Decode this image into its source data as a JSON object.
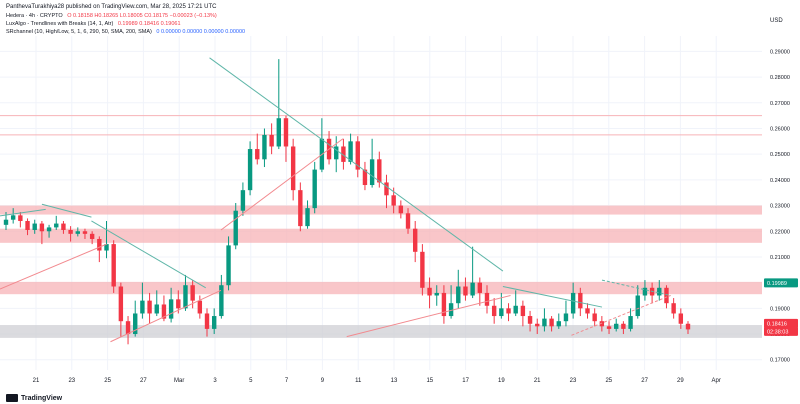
{
  "header": {
    "published": "PanthevaTurakhiya28 published on TradingView.com, Mar 28, 2025 17:21 UTC"
  },
  "legend": [
    {
      "name": "Hedera · 4h · CRYPTO",
      "values": "O 0.18158  H0.18265  L0.18005  C0.18175  −0.00023 (−0.13%)",
      "color": "red"
    },
    {
      "name": "LuxAlgo - Trendlines with Breaks (14, 1, Atr)",
      "values": "0.19989  0.18416  0.19061",
      "color": "red"
    },
    {
      "name": "SRchannel (10, High/Low, 5, 1, 6, 290, 50, SMA, 200, SMA)",
      "values": "0  0.00000  0.00000  0.00000  0.00000",
      "color": "blue"
    }
  ],
  "footer": {
    "brand": "TradingView"
  },
  "chart_data": {
    "type": "candlestick",
    "y_axis_unit": "USD",
    "ylim": [
      0.166,
      0.296
    ],
    "y_ticks": [
      0.17,
      0.18,
      0.19,
      0.2,
      0.21,
      0.22,
      0.23,
      0.24,
      0.25,
      0.26,
      0.27,
      0.28,
      0.29
    ],
    "y_tick_labels": [
      "0.17000",
      "0.18000",
      "0.19000",
      "0.20000",
      "0.21000",
      "0.22000",
      "0.23000",
      "0.24000",
      "0.25000",
      "0.26000",
      "0.27000",
      "0.28000",
      "0.29000"
    ],
    "x_tick_labels": [
      "21",
      "23",
      "25",
      "27",
      "Mar",
      "3",
      "5",
      "7",
      "9",
      "11",
      "13",
      "15",
      "17",
      "19",
      "21",
      "23",
      "25",
      "27",
      "29",
      "Apr"
    ],
    "price_badges": [
      {
        "label": "0.19989",
        "value": 0.19989,
        "color": "#089981"
      },
      {
        "label": "0.18416",
        "value": 0.18416,
        "color": "#f23645"
      },
      {
        "label": "02:38:03",
        "value": 0.1815,
        "color": "#f23645"
      }
    ],
    "sr_zones": [
      {
        "low": 0.1955,
        "high": 0.2003,
        "color": "#f7b3b7"
      },
      {
        "low": 0.2155,
        "high": 0.221,
        "color": "#f7b3b7"
      },
      {
        "low": 0.2265,
        "high": 0.23,
        "color": "#f7b3b7"
      },
      {
        "low": 0.1785,
        "high": 0.1835,
        "color": "#cfcfd4"
      }
    ],
    "sr_lines": [
      0.2575,
      0.265
    ],
    "trendlines": [
      {
        "from": [
          0.0,
          0.226
        ],
        "to": [
          0.06,
          0.2285
        ],
        "color": "#5fb6a8"
      },
      {
        "from": [
          0.055,
          0.2305
        ],
        "to": [
          0.12,
          0.2255
        ],
        "color": "#5fb6a8"
      },
      {
        "from": [
          0.12,
          0.224
        ],
        "to": [
          0.27,
          0.198
        ],
        "color": "#5fb6a8"
      },
      {
        "from": [
          0.275,
          0.2875
        ],
        "to": [
          0.66,
          0.2045
        ],
        "color": "#5fb6a8"
      },
      {
        "from": [
          0.66,
          0.1985
        ],
        "to": [
          0.79,
          0.1905
        ],
        "color": "#5fb6a8"
      },
      {
        "from": [
          0.79,
          0.201
        ],
        "to": [
          0.88,
          0.195
        ],
        "color": "#5fb6a8",
        "dashed": true
      },
      {
        "from": [
          0.0,
          0.1975
        ],
        "to": [
          0.14,
          0.215
        ],
        "color": "#f28a8f"
      },
      {
        "from": [
          0.145,
          0.177
        ],
        "to": [
          0.29,
          0.197
        ],
        "color": "#f28a8f"
      },
      {
        "from": [
          0.29,
          0.2205
        ],
        "to": [
          0.45,
          0.256
        ],
        "color": "#f28a8f"
      },
      {
        "from": [
          0.455,
          0.179
        ],
        "to": [
          0.67,
          0.195
        ],
        "color": "#f28a8f"
      },
      {
        "from": [
          0.75,
          0.1795
        ],
        "to": [
          0.88,
          0.195
        ],
        "color": "#f28a8f",
        "dashed": true
      }
    ],
    "candles": [
      [
        0.2225,
        0.2245,
        0.2275,
        0.2205
      ],
      [
        0.2245,
        0.2262,
        0.229,
        0.223
      ],
      [
        0.2262,
        0.224,
        0.2275,
        0.2215
      ],
      [
        0.224,
        0.2205,
        0.225,
        0.2185
      ],
      [
        0.2205,
        0.223,
        0.2245,
        0.219
      ],
      [
        0.223,
        0.22,
        0.224,
        0.215
      ],
      [
        0.22,
        0.2215,
        0.2225,
        0.2175
      ],
      [
        0.2215,
        0.223,
        0.226,
        0.2205
      ],
      [
        0.223,
        0.2205,
        0.224,
        0.219
      ],
      [
        0.2205,
        0.219,
        0.222,
        0.216
      ],
      [
        0.219,
        0.22,
        0.2215,
        0.218
      ],
      [
        0.22,
        0.219,
        0.221,
        0.217
      ],
      [
        0.219,
        0.217,
        0.22,
        0.215
      ],
      [
        0.217,
        0.2125,
        0.218,
        0.208
      ],
      [
        0.2125,
        0.215,
        0.224,
        0.2095
      ],
      [
        0.215,
        0.1985,
        0.2165,
        0.196
      ],
      [
        0.1985,
        0.185,
        0.2,
        0.179
      ],
      [
        0.185,
        0.18,
        0.187,
        0.176
      ],
      [
        0.18,
        0.188,
        0.193,
        0.179
      ],
      [
        0.188,
        0.193,
        0.2,
        0.186
      ],
      [
        0.193,
        0.188,
        0.196,
        0.184
      ],
      [
        0.188,
        0.1915,
        0.197,
        0.187
      ],
      [
        0.1915,
        0.186,
        0.195,
        0.185
      ],
      [
        0.186,
        0.1935,
        0.198,
        0.1845
      ],
      [
        0.1935,
        0.19,
        0.197,
        0.188
      ],
      [
        0.19,
        0.199,
        0.203,
        0.189
      ],
      [
        0.199,
        0.193,
        0.201,
        0.19
      ],
      [
        0.193,
        0.188,
        0.195,
        0.186
      ],
      [
        0.188,
        0.182,
        0.19,
        0.179
      ],
      [
        0.182,
        0.187,
        0.19,
        0.18
      ],
      [
        0.187,
        0.199,
        0.203,
        0.186
      ],
      [
        0.199,
        0.2145,
        0.218,
        0.197
      ],
      [
        0.2145,
        0.228,
        0.231,
        0.213
      ],
      [
        0.228,
        0.236,
        0.239,
        0.226
      ],
      [
        0.236,
        0.252,
        0.255,
        0.234
      ],
      [
        0.252,
        0.248,
        0.258,
        0.246
      ],
      [
        0.248,
        0.2575,
        0.26,
        0.245
      ],
      [
        0.2575,
        0.253,
        0.262,
        0.25
      ],
      [
        0.253,
        0.264,
        0.287,
        0.252
      ],
      [
        0.264,
        0.253,
        0.265,
        0.247
      ],
      [
        0.253,
        0.236,
        0.256,
        0.232
      ],
      [
        0.236,
        0.222,
        0.239,
        0.22
      ],
      [
        0.222,
        0.229,
        0.232,
        0.221
      ],
      [
        0.229,
        0.244,
        0.247,
        0.227
      ],
      [
        0.244,
        0.256,
        0.264,
        0.243
      ],
      [
        0.256,
        0.248,
        0.259,
        0.246
      ],
      [
        0.248,
        0.253,
        0.257,
        0.243
      ],
      [
        0.253,
        0.247,
        0.256,
        0.244
      ],
      [
        0.247,
        0.255,
        0.258,
        0.246
      ],
      [
        0.255,
        0.244,
        0.257,
        0.241
      ],
      [
        0.244,
        0.238,
        0.247,
        0.236
      ],
      [
        0.238,
        0.248,
        0.256,
        0.237
      ],
      [
        0.248,
        0.239,
        0.251,
        0.237
      ],
      [
        0.239,
        0.234,
        0.242,
        0.229
      ],
      [
        0.234,
        0.23,
        0.237,
        0.227
      ],
      [
        0.23,
        0.227,
        0.232,
        0.225
      ],
      [
        0.227,
        0.221,
        0.229,
        0.219
      ],
      [
        0.221,
        0.212,
        0.224,
        0.208
      ],
      [
        0.212,
        0.198,
        0.215,
        0.195
      ],
      [
        0.198,
        0.195,
        0.202,
        0.19
      ],
      [
        0.195,
        0.196,
        0.199,
        0.191
      ],
      [
        0.196,
        0.187,
        0.199,
        0.184
      ],
      [
        0.187,
        0.192,
        0.199,
        0.186
      ],
      [
        0.192,
        0.1985,
        0.205,
        0.19
      ],
      [
        0.1985,
        0.195,
        0.202,
        0.193
      ],
      [
        0.195,
        0.2,
        0.214,
        0.194
      ],
      [
        0.2,
        0.196,
        0.202,
        0.191
      ],
      [
        0.196,
        0.191,
        0.199,
        0.188
      ],
      [
        0.191,
        0.187,
        0.194,
        0.184
      ],
      [
        0.187,
        0.19,
        0.196,
        0.186
      ],
      [
        0.19,
        0.188,
        0.192,
        0.185
      ],
      [
        0.188,
        0.191,
        0.197,
        0.187
      ],
      [
        0.191,
        0.187,
        0.193,
        0.183
      ],
      [
        0.187,
        0.184,
        0.189,
        0.181
      ],
      [
        0.184,
        0.183,
        0.186,
        0.18
      ],
      [
        0.183,
        0.186,
        0.19,
        0.181
      ],
      [
        0.186,
        0.183,
        0.187,
        0.181
      ],
      [
        0.183,
        0.185,
        0.188,
        0.182
      ],
      [
        0.185,
        0.188,
        0.193,
        0.183
      ],
      [
        0.188,
        0.196,
        0.2,
        0.186
      ],
      [
        0.196,
        0.19,
        0.198,
        0.187
      ],
      [
        0.19,
        0.188,
        0.192,
        0.186
      ],
      [
        0.188,
        0.185,
        0.19,
        0.183
      ],
      [
        0.185,
        0.183,
        0.187,
        0.181
      ],
      [
        0.183,
        0.182,
        0.185,
        0.18
      ],
      [
        0.182,
        0.184,
        0.186,
        0.181
      ],
      [
        0.184,
        0.182,
        0.185,
        0.18
      ],
      [
        0.182,
        0.187,
        0.19,
        0.181
      ],
      [
        0.187,
        0.195,
        0.199,
        0.186
      ],
      [
        0.195,
        0.198,
        0.201,
        0.193
      ],
      [
        0.198,
        0.195,
        0.2,
        0.192
      ],
      [
        0.195,
        0.198,
        0.201,
        0.193
      ],
      [
        0.198,
        0.192,
        0.199,
        0.19
      ],
      [
        0.192,
        0.188,
        0.194,
        0.186
      ],
      [
        0.188,
        0.184,
        0.19,
        0.182
      ],
      [
        0.184,
        0.1818,
        0.185,
        0.18
      ]
    ]
  }
}
